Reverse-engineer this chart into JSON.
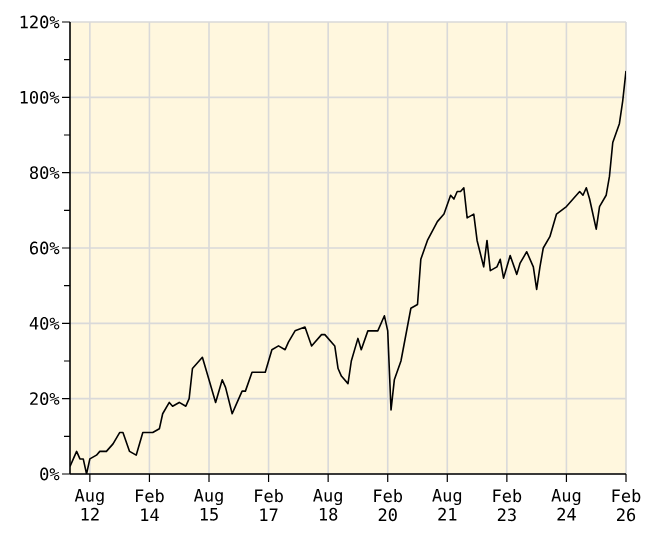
{
  "chart_data": {
    "type": "line",
    "color": "#000000",
    "grid": true,
    "marker": "none",
    "line_style": "solid",
    "xlim": [
      "2012-02",
      "2026-02"
    ],
    "xticks": [
      {
        "value": "2012-08",
        "label": "Aug 12"
      },
      {
        "value": "2014-02",
        "label": "Feb 14"
      },
      {
        "value": "2015-08",
        "label": "Aug 15"
      },
      {
        "value": "2017-02",
        "label": "Feb 17"
      },
      {
        "value": "2018-08",
        "label": "Aug 18"
      },
      {
        "value": "2020-02",
        "label": "Feb 20"
      },
      {
        "value": "2021-08",
        "label": "Aug 21"
      },
      {
        "value": "2023-02",
        "label": "Feb 23"
      },
      {
        "value": "2024-08",
        "label": "Aug 24"
      },
      {
        "value": "2026-02",
        "label": "Feb 26"
      }
    ],
    "ylim": [
      0,
      120
    ],
    "yticks": [
      {
        "value": 0,
        "label": "0%"
      },
      {
        "value": 10,
        "label": null
      },
      {
        "value": 20,
        "label": "20%"
      },
      {
        "value": 30,
        "label": null
      },
      {
        "value": 40,
        "label": "40%"
      },
      {
        "value": 50,
        "label": null
      },
      {
        "value": 60,
        "label": "60%"
      },
      {
        "value": 70,
        "label": null
      },
      {
        "value": 80,
        "label": "80%"
      },
      {
        "value": 90,
        "label": null
      },
      {
        "value": 100,
        "label": "100%"
      },
      {
        "value": 110,
        "label": null
      },
      {
        "value": 120,
        "label": "120%"
      }
    ],
    "x": [
      "2012-02",
      "2012-03",
      "2012-04",
      "2012-05",
      "2012-06",
      "2012-07",
      "2012-08",
      "2012-10",
      "2012-11",
      "2013-01",
      "2013-03",
      "2013-05",
      "2013-06",
      "2013-08",
      "2013-10",
      "2013-12",
      "2014-01",
      "2014-03",
      "2014-05",
      "2014-06",
      "2014-08",
      "2014-09",
      "2014-11",
      "2015-01",
      "2015-02",
      "2015-03",
      "2015-06",
      "2015-08",
      "2015-10",
      "2015-12",
      "2016-01",
      "2016-03",
      "2016-04",
      "2016-06",
      "2016-07",
      "2016-09",
      "2016-11",
      "2017-01",
      "2017-03",
      "2017-05",
      "2017-07",
      "2017-08",
      "2017-10",
      "2018-01",
      "2018-03",
      "2018-06",
      "2018-07",
      "2018-10",
      "2018-11",
      "2018-12",
      "2019-02",
      "2019-03",
      "2019-05",
      "2019-06",
      "2019-08",
      "2019-11",
      "2020-01",
      "2020-02",
      "2020-03",
      "2020-04",
      "2020-06",
      "2020-09",
      "2020-11",
      "2020-12",
      "2021-02",
      "2021-05",
      "2021-07",
      "2021-09",
      "2021-10",
      "2021-11",
      "2021-12",
      "2022-01",
      "2022-02",
      "2022-04",
      "2022-05",
      "2022-07",
      "2022-08",
      "2022-09",
      "2022-11",
      "2022-12",
      "2023-01",
      "2023-03",
      "2023-05",
      "2023-06",
      "2023-08",
      "2023-10",
      "2023-11",
      "2023-12",
      "2024-01",
      "2024-03",
      "2024-05",
      "2024-08",
      "2024-10",
      "2024-12",
      "2025-01",
      "2025-02",
      "2025-03",
      "2025-05",
      "2025-06",
      "2025-08",
      "2025-09",
      "2025-10",
      "2025-12",
      "2026-01",
      "2026-02"
    ],
    "values": [
      2,
      4,
      6,
      4,
      4,
      0,
      4,
      5,
      6,
      6,
      8,
      11,
      11,
      6,
      5,
      11,
      11,
      11,
      12,
      16,
      19,
      18,
      19,
      18,
      20,
      28,
      31,
      25,
      19,
      25,
      23,
      16,
      18,
      22,
      22,
      27,
      27,
      27,
      33,
      34,
      33,
      35,
      38,
      39,
      34,
      37,
      37,
      34,
      28,
      26,
      24,
      30,
      36,
      33,
      38,
      38,
      42,
      38,
      17,
      25,
      30,
      44,
      45,
      57,
      62,
      67,
      69,
      74,
      73,
      75,
      75,
      76,
      68,
      69,
      62,
      55,
      62,
      54,
      55,
      57,
      52,
      58,
      53,
      56,
      59,
      55,
      49,
      55,
      60,
      63,
      69,
      71,
      73,
      75,
      74,
      76,
      73,
      65,
      71,
      74,
      79,
      88,
      93,
      99,
      107
    ]
  }
}
